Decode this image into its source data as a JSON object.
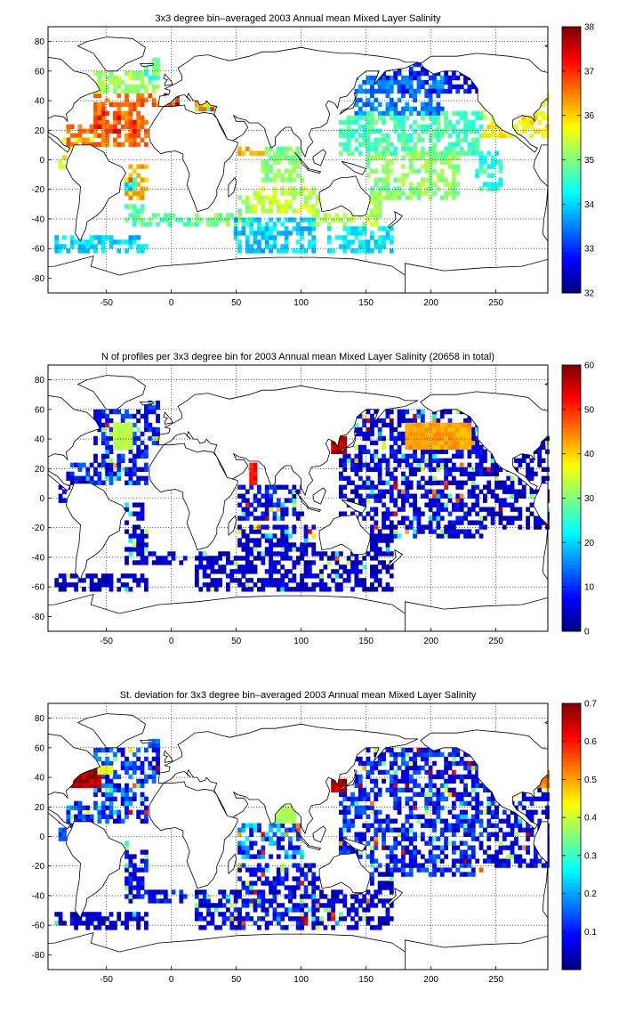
{
  "chart_data": [
    {
      "type": "heatmap",
      "title": "3x3 degree bin–averaged 2003 Annual mean Mixed Layer Salinity",
      "xlim": [
        -95,
        290
      ],
      "ylim": [
        -90,
        90
      ],
      "xticks": [
        -50,
        0,
        50,
        100,
        150,
        200,
        250
      ],
      "yticks": [
        80,
        60,
        40,
        20,
        0,
        -20,
        -40,
        -60,
        -80
      ],
      "xtick_labels": [
        "-50",
        "0",
        "50",
        "100",
        "150",
        "200",
        "250"
      ],
      "ytick_labels": [
        "80",
        "60",
        "40",
        "20",
        "0",
        "-20",
        "-40",
        "-60",
        "-80"
      ],
      "grid": true,
      "colormap": "jet",
      "colorbar_range": [
        32,
        38
      ],
      "colorbar_ticks": [
        32,
        33,
        34,
        35,
        36,
        37,
        38
      ],
      "colorbar_labels": [
        "32",
        "33",
        "34",
        "35",
        "36",
        "37",
        "38"
      ],
      "bin_size_deg": 3,
      "regions": [
        {
          "x": [
            -80,
            -8
          ],
          "y": [
            10,
            45
          ],
          "value": 36.6
        },
        {
          "x": [
            -60,
            -25
          ],
          "y": [
            18,
            32
          ],
          "value": 37.2
        },
        {
          "x": [
            -60,
            -10
          ],
          "y": [
            45,
            65
          ],
          "value": 35.2
        },
        {
          "x": [
            -30,
            -5
          ],
          "y": [
            55,
            68
          ],
          "value": 34.6
        },
        {
          "x": [
            -85,
            -60
          ],
          "y": [
            -5,
            15
          ],
          "value": 35.8
        },
        {
          "x": [
            -35,
            10
          ],
          "y": [
            -30,
            -5
          ],
          "value": 36.3
        },
        {
          "x": [
            -40,
            20
          ],
          "y": [
            -45,
            -30
          ],
          "value": 34.8
        },
        {
          "x": [
            -90,
            -20
          ],
          "y": [
            -62,
            -52
          ],
          "value": 34.0
        },
        {
          "x": [
            20,
            60
          ],
          "y": [
            -45,
            -25
          ],
          "value": 35.0
        },
        {
          "x": [
            55,
            110
          ],
          "y": [
            -35,
            -20
          ],
          "value": 35.4
        },
        {
          "x": [
            50,
            110
          ],
          "y": [
            -62,
            -40
          ],
          "value": 34.0
        },
        {
          "x": [
            45,
            70
          ],
          "y": [
            5,
            25
          ],
          "value": 36.1
        },
        {
          "x": [
            70,
            100
          ],
          "y": [
            -15,
            10
          ],
          "value": 35.0
        },
        {
          "x": [
            110,
            160
          ],
          "y": [
            -45,
            -25
          ],
          "value": 35.3
        },
        {
          "x": [
            120,
            170
          ],
          "y": [
            -62,
            -45
          ],
          "value": 34.2
        },
        {
          "x": [
            135,
            210
          ],
          "y": [
            32,
            55
          ],
          "value": 33.5
        },
        {
          "x": [
            160,
            240
          ],
          "y": [
            45,
            65
          ],
          "value": 32.8
        },
        {
          "x": [
            130,
            240
          ],
          "y": [
            5,
            32
          ],
          "value": 34.7
        },
        {
          "x": [
            150,
            220
          ],
          "y": [
            -25,
            5
          ],
          "value": 35.1
        },
        {
          "x": [
            240,
            290
          ],
          "y": [
            15,
            45
          ],
          "value": 35.8
        },
        {
          "x": [
            235,
            255
          ],
          "y": [
            -20,
            5
          ],
          "value": 34.5
        }
      ],
      "spots": [
        {
          "x": [
            -5,
            5
          ],
          "y": [
            37,
            43
          ],
          "value": 38.0
        },
        {
          "x": [
            18,
            35
          ],
          "y": [
            33,
            42
          ],
          "value": 38.0
        },
        {
          "x": [
            40,
            48
          ],
          "y": [
            10,
            26
          ],
          "value": 36.8
        },
        {
          "x": [
            -35,
            -28
          ],
          "y": [
            -22,
            -14
          ],
          "value": 37.5
        }
      ]
    },
    {
      "type": "heatmap",
      "title": "N of profiles per 3x3 degree bin for 2003 Annual mean Mixed Layer Salinity  (20658 in total)",
      "xlim": [
        -95,
        290
      ],
      "ylim": [
        -90,
        90
      ],
      "xticks": [
        -50,
        0,
        50,
        100,
        150,
        200,
        250
      ],
      "yticks": [
        80,
        60,
        40,
        20,
        0,
        -20,
        -40,
        -60,
        -80
      ],
      "xtick_labels": [
        "-50",
        "0",
        "50",
        "100",
        "150",
        "200",
        "250"
      ],
      "ytick_labels": [
        "80",
        "60",
        "40",
        "20",
        "0",
        "-20",
        "-40",
        "-60",
        "-80"
      ],
      "grid": true,
      "colormap": "jet",
      "colorbar_range": [
        0,
        60
      ],
      "colorbar_ticks": [
        0,
        10,
        20,
        30,
        40,
        50,
        60
      ],
      "colorbar_labels": [
        "0",
        "10",
        "20",
        "30",
        "40",
        "50",
        "60"
      ],
      "bin_size_deg": 3,
      "regions": [
        {
          "x": [
            -80,
            -8
          ],
          "y": [
            10,
            65
          ],
          "value": 8
        },
        {
          "x": [
            -85,
            -60
          ],
          "y": [
            -5,
            15
          ],
          "value": 5
        },
        {
          "x": [
            -35,
            10
          ],
          "y": [
            -45,
            -5
          ],
          "value": 5
        },
        {
          "x": [
            -90,
            -20
          ],
          "y": [
            -62,
            -52
          ],
          "value": 4
        },
        {
          "x": [
            20,
            110
          ],
          "y": [
            -62,
            -20
          ],
          "value": 5
        },
        {
          "x": [
            45,
            100
          ],
          "y": [
            -15,
            25
          ],
          "value": 7
        },
        {
          "x": [
            110,
            170
          ],
          "y": [
            -62,
            -25
          ],
          "value": 4
        },
        {
          "x": [
            130,
            240
          ],
          "y": [
            -25,
            60
          ],
          "value": 6
        },
        {
          "x": [
            240,
            290
          ],
          "y": [
            -20,
            45
          ],
          "value": 4
        }
      ],
      "spots": [
        {
          "x": [
            -45,
            -30
          ],
          "y": [
            35,
            50
          ],
          "value": 35
        },
        {
          "x": [
            60,
            66
          ],
          "y": [
            10,
            22
          ],
          "value": 55
        },
        {
          "x": [
            125,
            135
          ],
          "y": [
            30,
            40
          ],
          "value": 60
        },
        {
          "x": [
            180,
            230
          ],
          "y": [
            35,
            50
          ],
          "value": 45
        }
      ]
    },
    {
      "type": "heatmap",
      "title": "St. deviation for 3x3 degree bin–averaged 2003 Annual mean Mixed Layer Salinity",
      "xlim": [
        -95,
        290
      ],
      "ylim": [
        -90,
        90
      ],
      "xticks": [
        -50,
        0,
        50,
        100,
        150,
        200,
        250
      ],
      "yticks": [
        80,
        60,
        40,
        20,
        0,
        -20,
        -40,
        -60,
        -80
      ],
      "xtick_labels": [
        "-50",
        "0",
        "50",
        "100",
        "150",
        "200",
        "250"
      ],
      "ytick_labels": [
        "80",
        "60",
        "40",
        "20",
        "0",
        "-20",
        "-40",
        "-60",
        "-80"
      ],
      "grid": true,
      "colormap": "jet",
      "colorbar_range": [
        0,
        0.7
      ],
      "colorbar_ticks": [
        0.1,
        0.2,
        0.3,
        0.4,
        0.5,
        0.6,
        0.7
      ],
      "colorbar_labels": [
        "0.1",
        "0.2",
        "0.3",
        "0.4",
        "0.5",
        "0.6",
        "0.7"
      ],
      "bin_size_deg": 3,
      "regions": [
        {
          "x": [
            -80,
            -8
          ],
          "y": [
            10,
            65
          ],
          "value": 0.12
        },
        {
          "x": [
            -85,
            -60
          ],
          "y": [
            -5,
            15
          ],
          "value": 0.1
        },
        {
          "x": [
            -35,
            10
          ],
          "y": [
            -45,
            -5
          ],
          "value": 0.08
        },
        {
          "x": [
            -90,
            -20
          ],
          "y": [
            -62,
            -52
          ],
          "value": 0.06
        },
        {
          "x": [
            20,
            110
          ],
          "y": [
            -62,
            -20
          ],
          "value": 0.08
        },
        {
          "x": [
            45,
            100
          ],
          "y": [
            -15,
            25
          ],
          "value": 0.15
        },
        {
          "x": [
            110,
            170
          ],
          "y": [
            -62,
            -25
          ],
          "value": 0.06
        },
        {
          "x": [
            130,
            240
          ],
          "y": [
            -25,
            60
          ],
          "value": 0.1
        },
        {
          "x": [
            240,
            290
          ],
          "y": [
            -20,
            45
          ],
          "value": 0.08
        }
      ],
      "spots": [
        {
          "x": [
            -80,
            -55
          ],
          "y": [
            35,
            45
          ],
          "value": 0.7
        },
        {
          "x": [
            -55,
            -45
          ],
          "y": [
            42,
            48
          ],
          "value": 0.45
        },
        {
          "x": [
            125,
            135
          ],
          "y": [
            30,
            38
          ],
          "value": 0.7
        },
        {
          "x": [
            80,
            95
          ],
          "y": [
            10,
            20
          ],
          "value": 0.4
        },
        {
          "x": [
            280,
            290
          ],
          "y": [
            35,
            45
          ],
          "value": 0.55
        }
      ]
    }
  ]
}
